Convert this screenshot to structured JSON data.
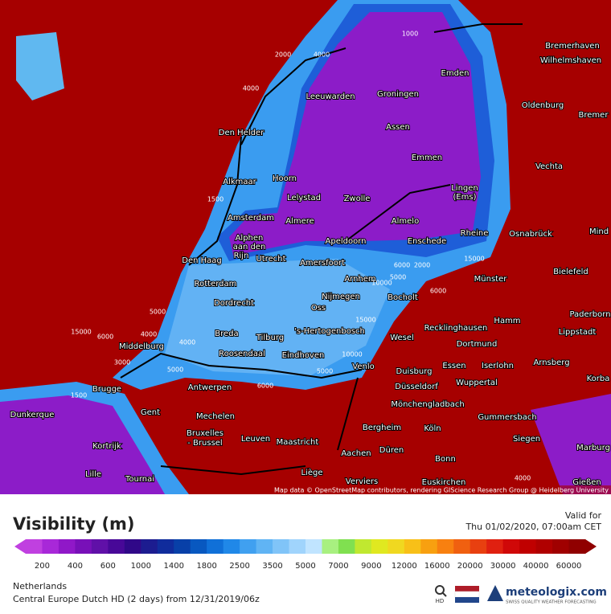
{
  "map": {
    "cities": [
      "Bremerhaven",
      "Wilhelmshaven",
      "Emden",
      "Leeuwarden",
      "Groningen",
      "Oldenburg",
      "Bremer",
      "Den Helder",
      "Assen",
      "Emmen",
      "Vechta",
      "Hoorn",
      "Alkmaar",
      "Lelystad",
      "Zwolle",
      "Lingen",
      "(Ems)",
      "Amsterdam",
      "Almere",
      "Almelo",
      "Rheine",
      "Osnabrück",
      "Mind",
      "Alphen",
      "aan den",
      "Rijn",
      "Apeldoorn",
      "Enschede",
      "Den Haag",
      "Utrecht",
      "Amersfoort",
      "Bielefeld",
      "Arnhem",
      "Münster",
      "Rotterdam",
      "Nijmegen",
      "Bocholt",
      "Dordrecht",
      "Oss",
      "Hamm",
      "Paderborn",
      "Recklinghausen",
      "Lippstadt",
      "Breda",
      "Tilburg",
      "'s-Hertogenbosch",
      "Wesel",
      "Dortmund",
      "Middelburg",
      "Roosendaal",
      "Eindhoven",
      "Venlo",
      "Essen",
      "Iserlohn",
      "Arnsberg",
      "Korba",
      "Duisburg",
      "Wuppertal",
      "Antwerpen",
      "Brugge",
      "Düsseldorf",
      "Mönchengladbach",
      "Dunkerque",
      "Gent",
      "Mechelen",
      "Gummersbach",
      "Bergheim",
      "Köln",
      "Bruxelles",
      "- Brussel",
      "Leuven",
      "Maastricht",
      "Kortrijk",
      "Siegen",
      "Marburg",
      "Düren",
      "Aachen",
      "Bonn",
      "Lille",
      "Liège",
      "Tournai",
      "Euskirchen",
      "Verviers",
      "Gießen"
    ],
    "contour_labels": [
      "1000",
      "2000",
      "4000",
      "4000",
      "1500",
      "5000",
      "6000",
      "15000",
      "4000",
      "3000",
      "4000",
      "5000",
      "2000",
      "6000",
      "10000",
      "15000",
      "5000",
      "6000",
      "10000",
      "5000",
      "6000",
      "4000",
      "1500",
      "15000"
    ],
    "attribution": "Map data © OpenStreetMap contributors, rendering GIScience Research Group @ Heidelberg University"
  },
  "legend": {
    "title": "Visibility (m)",
    "valid_label": "Valid for",
    "valid_time": "Thu 01/02/2020, 07:00am CET",
    "colors": [
      "#c040e0",
      "#a828d8",
      "#9018c8",
      "#7810b8",
      "#6010a8",
      "#480898",
      "#300888",
      "#1c1c90",
      "#102c9c",
      "#0840a8",
      "#0858c0",
      "#1070d8",
      "#2088e8",
      "#40a0f0",
      "#60b4f4",
      "#80c4f8",
      "#a0d4fc",
      "#c0e4ff",
      "#a8f080",
      "#80e050",
      "#c0e830",
      "#e0e820",
      "#f0d820",
      "#f8c018",
      "#f8a010",
      "#f88010",
      "#f06010",
      "#e84010",
      "#e02010",
      "#d00808",
      "#c00000",
      "#b00000",
      "#a00000",
      "#900000"
    ],
    "ticks": [
      "200",
      "400",
      "600",
      "1000",
      "1400",
      "1800",
      "2500",
      "3500",
      "5000",
      "7000",
      "9000",
      "12000",
      "16000",
      "20000",
      "30000",
      "40000",
      "60000"
    ]
  },
  "footer": {
    "region": "Netherlands",
    "model": "Central Europe Dutch HD (2 days) from 12/31/2019/06z",
    "brand": "meteologix.com",
    "tagline": "SWISS QUALITY WEATHER FORECASTING",
    "hd": "HD"
  }
}
